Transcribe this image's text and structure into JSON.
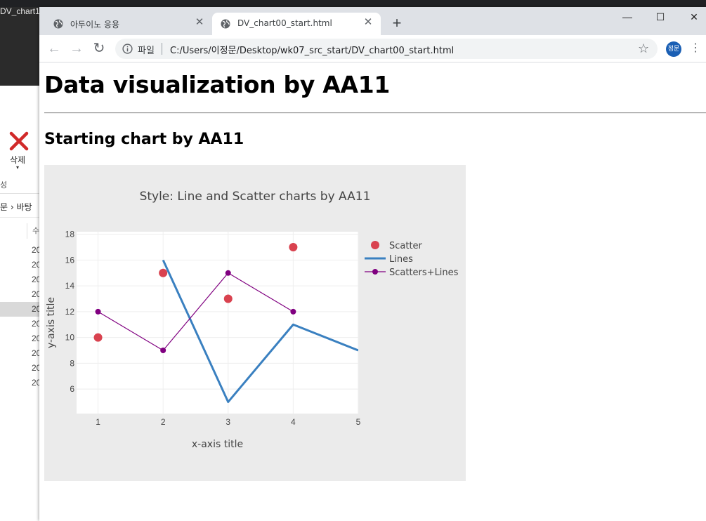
{
  "background_window": {
    "title": "DV_chart1",
    "delete_label": "삭제",
    "group_label": "성",
    "breadcrumb": "문 › 바탕",
    "column_header": "수",
    "rows": [
      "20",
      "20",
      "20",
      "20",
      "20",
      "20",
      "20",
      "20",
      "20",
      "20"
    ]
  },
  "browser": {
    "tabs": [
      {
        "title": "아두이노 응용",
        "icon": "globe-icon",
        "active": false
      },
      {
        "title": "DV_chart00_start.html",
        "icon": "globe-icon",
        "active": true
      }
    ],
    "new_tab": "+",
    "scheme_label": "파일",
    "url": "C:/Users/이정문/Desktop/wk07_src_start/DV_chart00_start.html",
    "profile_initials": "정문",
    "icons": {
      "back": "back-arrow-icon",
      "forward": "forward-arrow-icon",
      "reload": "reload-icon",
      "info": "info-icon",
      "star": "star-icon",
      "menu": "three-dots-icon"
    }
  },
  "page": {
    "title": "Data visualization by AA11",
    "subtitle": "Starting chart by AA11"
  },
  "chart_data": {
    "type": "line",
    "title": "Style: Line and Scatter charts by AA11",
    "xlabel": "x-axis title",
    "ylabel": "y-axis title",
    "xlim": [
      0.67,
      5
    ],
    "ylim": [
      4.1,
      18.2
    ],
    "xticks": [
      "1",
      "2",
      "3",
      "4",
      "5"
    ],
    "yticks": [
      "6",
      "8",
      "10",
      "12",
      "14",
      "16",
      "18"
    ],
    "grid": true,
    "legend_position": "right",
    "paper_color": "#ebebeb",
    "plot_color": "#ffffff",
    "series": [
      {
        "name": "Scatter",
        "mode": "markers",
        "color": "#d9424f",
        "x": [
          1,
          2,
          3,
          4
        ],
        "y": [
          10,
          15,
          13,
          17
        ]
      },
      {
        "name": "Lines",
        "mode": "lines",
        "color": "#3a80c0",
        "x": [
          2,
          3,
          4,
          5
        ],
        "y": [
          16,
          5,
          11,
          9
        ]
      },
      {
        "name": "Scatters+Lines",
        "mode": "lines+markers",
        "color": "#800080",
        "x": [
          1,
          2,
          3,
          4
        ],
        "y": [
          12,
          9,
          15,
          12
        ]
      }
    ]
  }
}
